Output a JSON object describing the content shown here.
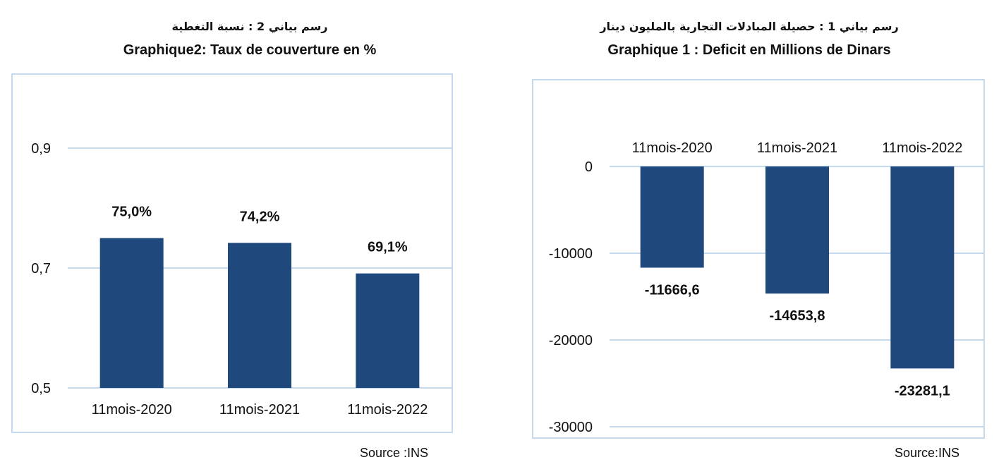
{
  "colors": {
    "bar": "#1f497d",
    "grid": "#c7d9ec",
    "text": "#111111"
  },
  "chart_data": [
    {
      "type": "bar",
      "title_ar": "رسم بياني 2 : نسبة التغطية",
      "title": "Graphique2: Taux de couverture en %",
      "categories": [
        "11mois-2020",
        "11mois-2021",
        "11mois-2022"
      ],
      "values": [
        0.75,
        0.742,
        0.691
      ],
      "data_labels": [
        "75,0%",
        "74,2%",
        "69,1%"
      ],
      "ylim": [
        0.5,
        0.9
      ],
      "yticks": [
        0.5,
        0.7,
        0.9
      ],
      "ytick_labels": [
        "0,5",
        "0,7",
        "0,9"
      ],
      "grid": true,
      "source": "Source :INS"
    },
    {
      "type": "bar",
      "title_ar": "رسم بياني 1 : حصيلة المبادلات التجارية بالمليون دينار",
      "title": "Graphique 1 : Deficit en Millions de Dinars",
      "categories": [
        "11mois-2020",
        "11mois-2021",
        "11mois-2022"
      ],
      "values": [
        -11666.6,
        -14653.8,
        -23281.1
      ],
      "data_labels": [
        "-11666,6",
        "-14653,8",
        "-23281,1"
      ],
      "ylim": [
        -30000,
        0
      ],
      "yticks": [
        0,
        -10000,
        -20000,
        -30000
      ],
      "ytick_labels": [
        "0",
        "-10000",
        "-20000",
        "-30000"
      ],
      "grid": true,
      "source": "Source:INS"
    }
  ]
}
